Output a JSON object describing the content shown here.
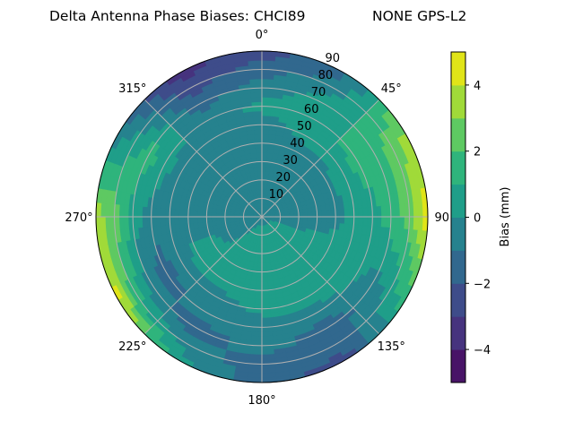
{
  "chart_data": {
    "type": "contour-polar",
    "title": "Delta Antenna Phase Biases: CHCI89",
    "subtitle": "NONE GPS-L2",
    "azimuth_deg": [
      0,
      30,
      60,
      90,
      120,
      150,
      180,
      210,
      240,
      270,
      300,
      330
    ],
    "zenith_deg": [
      0,
      10,
      20,
      30,
      40,
      50,
      60,
      70,
      80,
      90
    ],
    "values_mm": [
      [
        -0.5,
        -0.5,
        -0.5,
        -0.5,
        -0.5,
        -0.5,
        0.3,
        -0.5,
        -1.5,
        -2.5
      ],
      [
        -0.5,
        -0.5,
        -0.5,
        -0.5,
        -0.5,
        0.3,
        0.5,
        0.5,
        -0.5,
        -1.5
      ],
      [
        -0.5,
        -0.5,
        -0.5,
        -0.5,
        -0.2,
        0.5,
        1.5,
        1.5,
        2.5,
        3.5
      ],
      [
        -0.5,
        -0.5,
        -0.5,
        -0.5,
        -0.3,
        0.3,
        0.5,
        1.5,
        2.5,
        4.5
      ],
      [
        -0.3,
        0.3,
        0.3,
        0.4,
        0.5,
        0.5,
        0.3,
        -0.5,
        0.5,
        1.5
      ],
      [
        -0.3,
        0.3,
        0.3,
        0.5,
        0.5,
        0.5,
        -0.5,
        -1.5,
        -1.5,
        -2.5
      ],
      [
        -0.5,
        0.3,
        0.5,
        0.5,
        0.5,
        0.3,
        -0.5,
        -0.5,
        -1.5,
        -1.5
      ],
      [
        -0.5,
        0.3,
        0.5,
        0.5,
        0.5,
        -0.5,
        -0.5,
        -1.5,
        -0.5,
        0.5
      ],
      [
        -0.5,
        -0.5,
        -0.3,
        0.3,
        0.3,
        -0.5,
        -1.5,
        -0.5,
        1.5,
        4.5
      ],
      [
        -0.5,
        -0.5,
        -0.5,
        -0.5,
        -0.5,
        -0.5,
        -0.5,
        0.5,
        2.5,
        3.5
      ],
      [
        -0.5,
        -0.5,
        -0.5,
        -0.5,
        -0.5,
        -0.5,
        0.5,
        1.5,
        0.5,
        -0.5
      ],
      [
        -0.5,
        -0.5,
        -0.5,
        -0.5,
        -0.5,
        -0.5,
        -0.5,
        -1.5,
        -2.5,
        -3.5
      ]
    ],
    "levels": [
      -5,
      -4,
      -3,
      -2,
      -1,
      0,
      1,
      2,
      3,
      4,
      5
    ],
    "level_colors": [
      "#481467",
      "#46337e",
      "#3e4c8a",
      "#31688e",
      "#26828e",
      "#1f9e89",
      "#2fb47c",
      "#5ec962",
      "#a0da39",
      "#e0e418"
    ],
    "angle_tick_labels": [
      "0°",
      "45°",
      "90°",
      "135°",
      "180°",
      "225°",
      "270°",
      "315°"
    ],
    "radial_tick_labels": [
      "10",
      "20",
      "30",
      "40",
      "50",
      "60",
      "70",
      "80",
      "90"
    ],
    "radial_range": [
      0,
      90
    ],
    "grid": true,
    "colorbar": {
      "label": "Bias (mm)",
      "range": [
        -5,
        5
      ],
      "tick_labels": [
        "−4",
        "−2",
        "0",
        "2",
        "4"
      ],
      "tick_values": [
        -4,
        -2,
        0,
        2,
        4
      ]
    }
  }
}
